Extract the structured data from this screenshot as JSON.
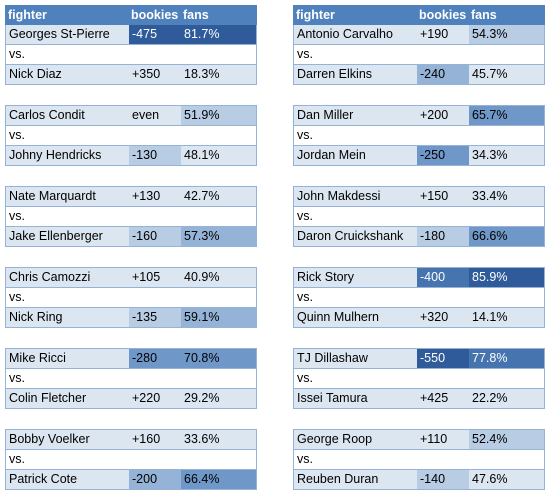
{
  "headers": {
    "fighter": "fighter",
    "bookies": "bookies",
    "fans": "fans"
  },
  "vs_label": "vs.",
  "left": [
    {
      "a": {
        "name": "Georges St-Pierre",
        "odds": "-475",
        "fans": "81.7%"
      },
      "b": {
        "name": "Nick Diaz",
        "odds": "+350",
        "fans": "18.3%"
      }
    },
    {
      "a": {
        "name": "Carlos Condit",
        "odds": "even",
        "fans": "51.9%"
      },
      "b": {
        "name": "Johny Hendricks",
        "odds": "-130",
        "fans": "48.1%"
      }
    },
    {
      "a": {
        "name": "Nate Marquardt",
        "odds": "+130",
        "fans": "42.7%"
      },
      "b": {
        "name": "Jake Ellenberger",
        "odds": "-160",
        "fans": "57.3%"
      }
    },
    {
      "a": {
        "name": "Chris Camozzi",
        "odds": "+105",
        "fans": "40.9%"
      },
      "b": {
        "name": "Nick Ring",
        "odds": "-135",
        "fans": "59.1%"
      }
    },
    {
      "a": {
        "name": "Mike Ricci",
        "odds": "-280",
        "fans": "70.8%"
      },
      "b": {
        "name": "Colin Fletcher",
        "odds": "+220",
        "fans": "29.2%"
      }
    },
    {
      "a": {
        "name": "Bobby Voelker",
        "odds": "+160",
        "fans": "33.6%"
      },
      "b": {
        "name": "Patrick Cote",
        "odds": "-200",
        "fans": "66.4%"
      }
    }
  ],
  "right": [
    {
      "a": {
        "name": "Antonio Carvalho",
        "odds": "+190",
        "fans": "54.3%"
      },
      "b": {
        "name": "Darren Elkins",
        "odds": "-240",
        "fans": "45.7%"
      }
    },
    {
      "a": {
        "name": "Dan Miller",
        "odds": "+200",
        "fans": "65.7%"
      },
      "b": {
        "name": "Jordan Mein",
        "odds": "-250",
        "fans": "34.3%"
      }
    },
    {
      "a": {
        "name": "John Makdessi",
        "odds": "+150",
        "fans": "33.4%"
      },
      "b": {
        "name": "Daron Cruickshank",
        "odds": "-180",
        "fans": "66.6%"
      }
    },
    {
      "a": {
        "name": "Rick Story",
        "odds": "-400",
        "fans": "85.9%"
      },
      "b": {
        "name": "Quinn Mulhern",
        "odds": "+320",
        "fans": "14.1%"
      }
    },
    {
      "a": {
        "name": "TJ Dillashaw",
        "odds": "-550",
        "fans": "77.8%"
      },
      "b": {
        "name": "Issei Tamura",
        "odds": "+425",
        "fans": "22.2%"
      }
    },
    {
      "a": {
        "name": "George Roop",
        "odds": "+110",
        "fans": "52.4%"
      },
      "b": {
        "name": "Reuben Duran",
        "odds": "-140",
        "fans": "47.6%"
      }
    }
  ]
}
